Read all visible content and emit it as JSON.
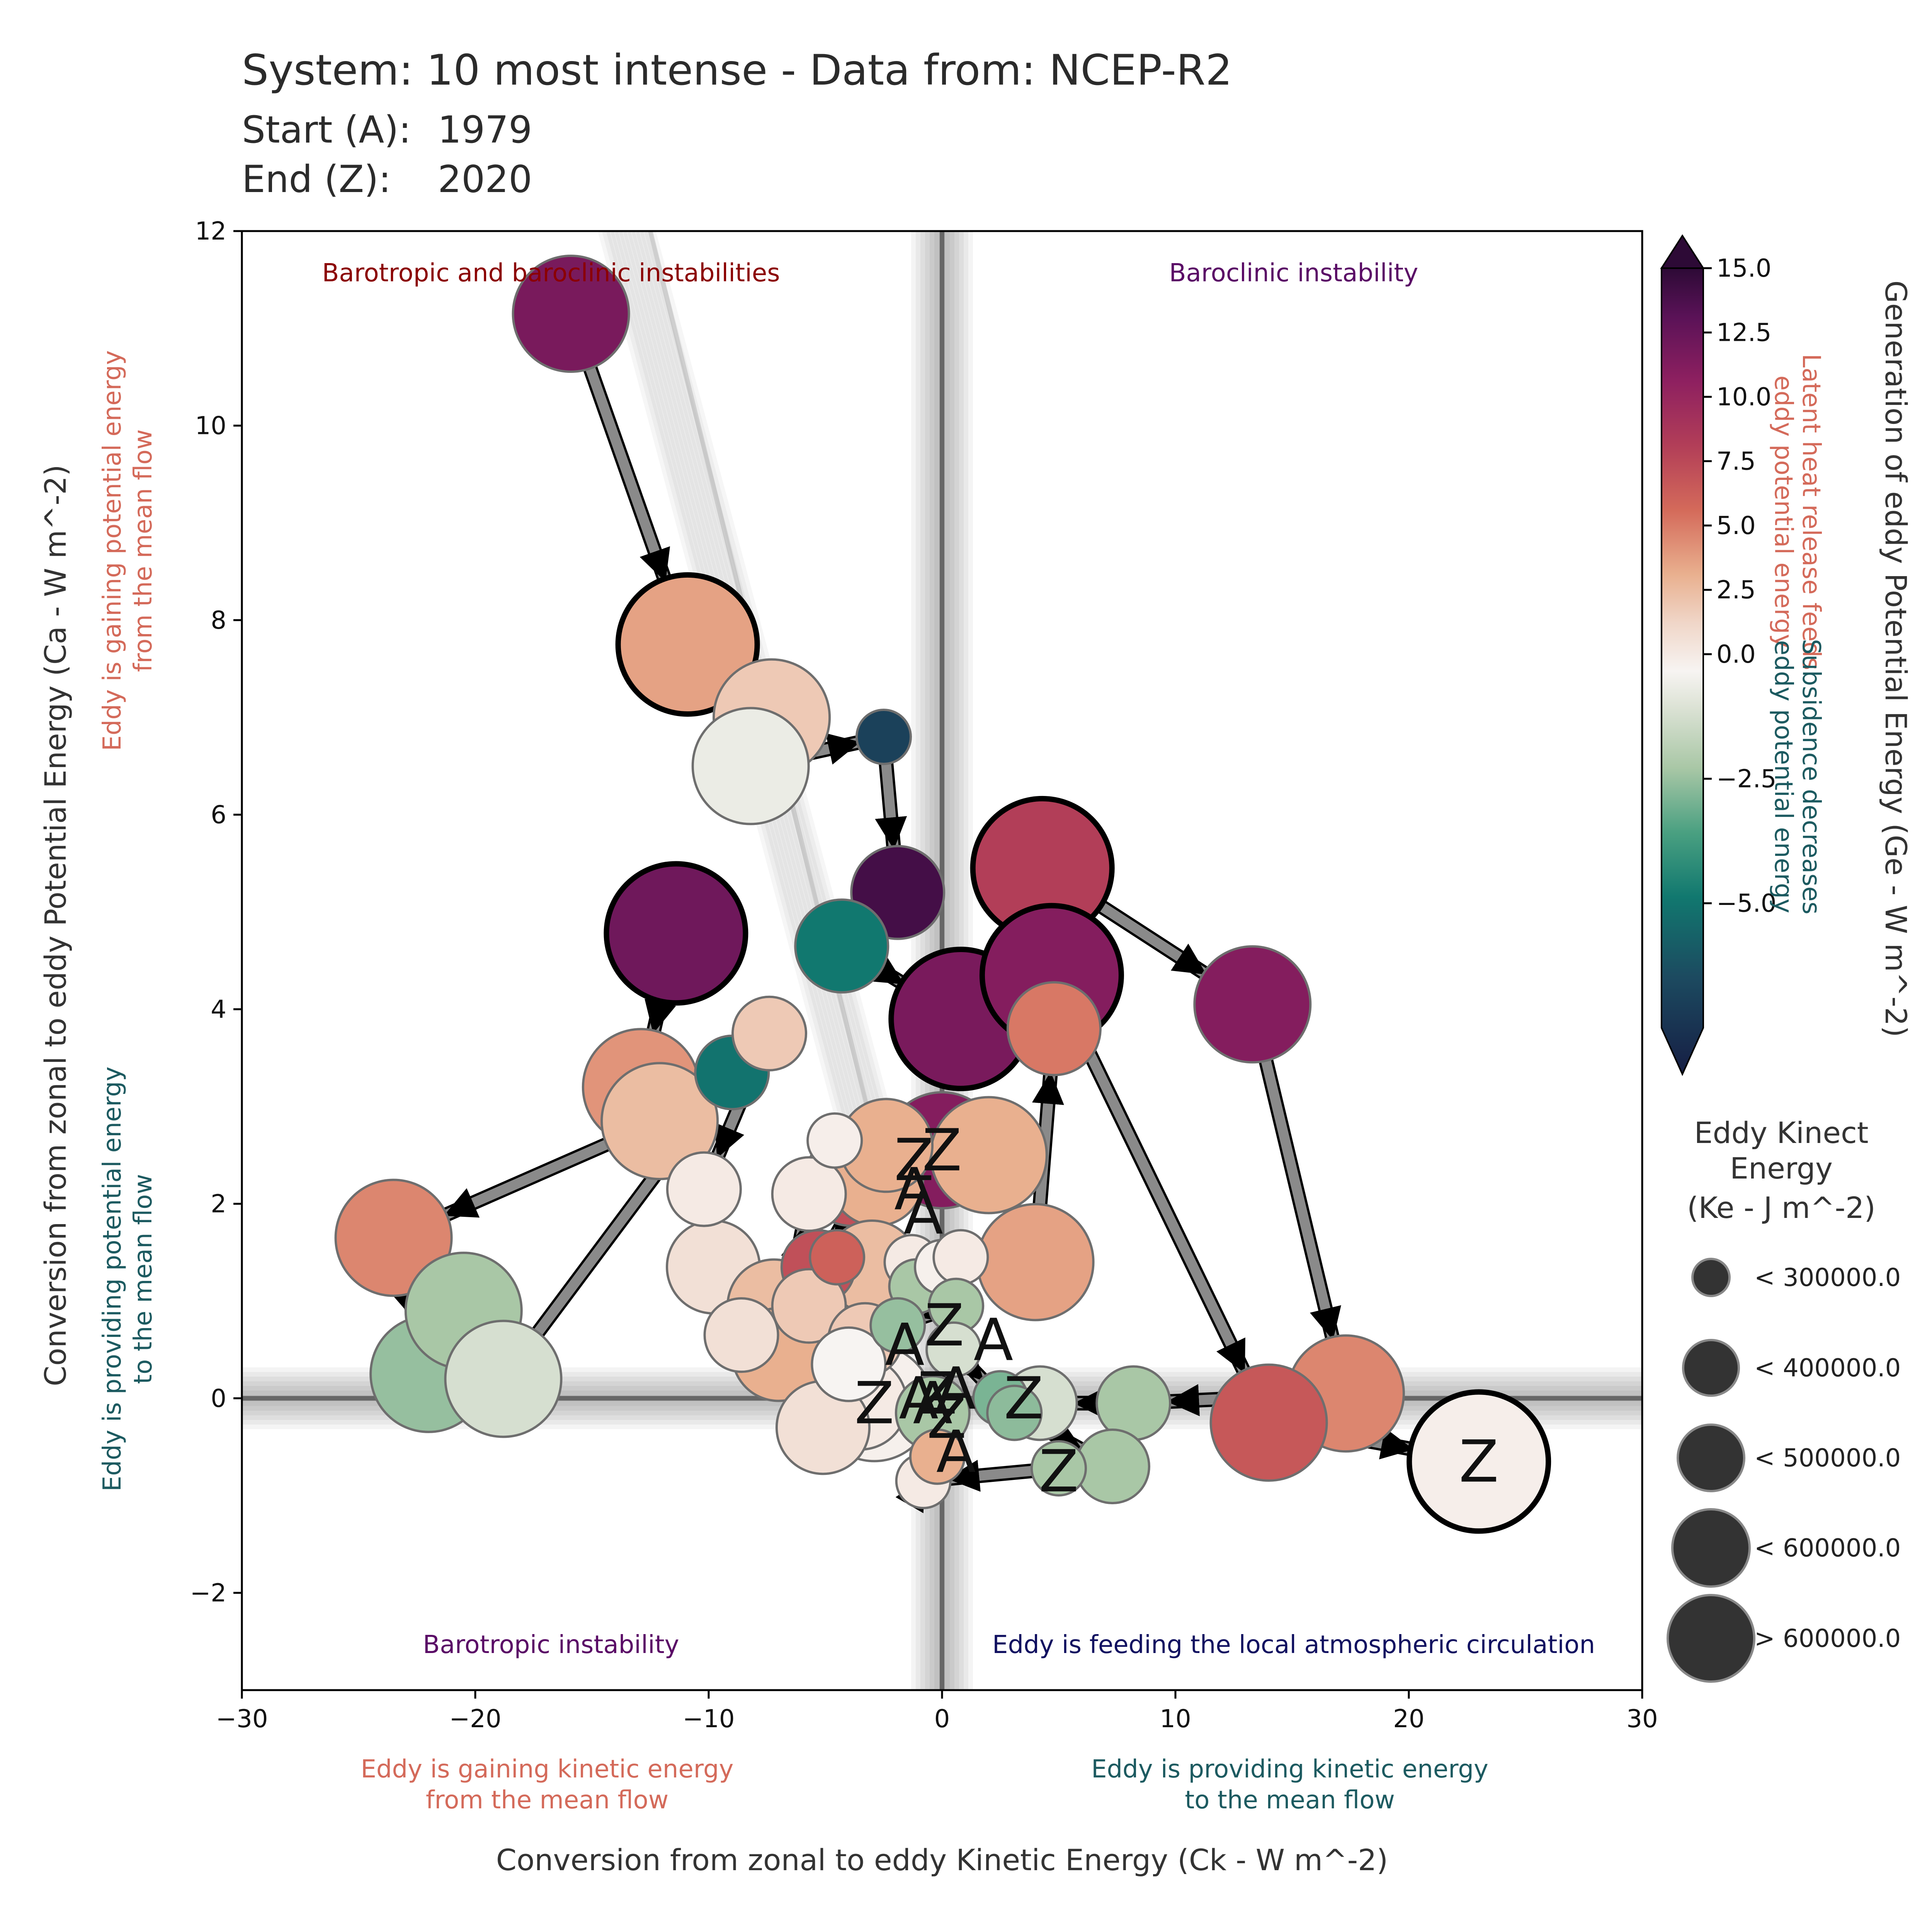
{
  "header": {
    "title": "System: 10 most intense - Data from: NCEP-R2",
    "start_label": "Start (A):",
    "start_value": "1979",
    "end_label": "End (Z):",
    "end_value": "2020"
  },
  "chart_data": {
    "type": "scatter",
    "xlabel": "Conversion from zonal to eddy Kinetic Energy (Ck -  W m^-2)",
    "ylabel": "Conversion from zonal to eddy Potential Energy (Ca -  W m^-2)",
    "xlim": [
      -30,
      30
    ],
    "ylim": [
      -3,
      12
    ],
    "x_ticks": [
      "−30",
      "−20",
      "−10",
      "0",
      "10",
      "20",
      "30"
    ],
    "x_tick_values": [
      -30,
      -20,
      -10,
      0,
      10,
      20,
      30
    ],
    "y_ticks": [
      "−2",
      "0",
      "2",
      "4",
      "6",
      "8",
      "10",
      "12"
    ],
    "y_tick_values": [
      -2,
      0,
      2,
      4,
      6,
      8,
      10,
      12
    ],
    "quadrant_labels": {
      "top_left": "Barotropic and baroclinic instabilities",
      "top_right": "Baroclinic instability",
      "bottom_left": "Barotropic instability",
      "bottom_right": "Eddy is feeding the local atmospheric circulation"
    },
    "x_annotations": {
      "left": [
        "Eddy is gaining kinetic energy",
        "from the mean flow"
      ],
      "right": [
        "Eddy is providing kinetic energy",
        "to the mean flow"
      ]
    },
    "y_annotations": {
      "top": [
        "Eddy is gaining potential energy",
        "from the mean flow"
      ],
      "bottom": [
        "Eddy is providing potential energy",
        "to the mean flow"
      ]
    },
    "colorbar": {
      "label": "Generation of eddy Potential Energy (Ge -  W m^-2)",
      "ticks": [
        "15.0",
        "12.5",
        "10.0",
        "7.5",
        "5.0",
        "2.5",
        "0.0",
        "−2.5",
        "−5.0"
      ],
      "tick_values": [
        15,
        12.5,
        10,
        7.5,
        5,
        2.5,
        0,
        -2.5,
        -5
      ],
      "range": [
        -7.5,
        15
      ],
      "annotation_positive": [
        "Latent heat release feeds",
        "eddy potential energy"
      ],
      "annotation_negative": [
        "Subsidence decreases",
        "eddy potential energy"
      ]
    },
    "size_legend": {
      "title": [
        "Eddy Kinect",
        "Energy",
        "(Ke -  J m^-2)"
      ],
      "entries": [
        "< 300000.0",
        "< 400000.0",
        "< 500000.0",
        "< 600000.0",
        "> 600000.0"
      ]
    },
    "colors": {
      "pos_high": "#2d0a36",
      "pos_mid": "#8e2060",
      "pos_low": "#d46a5a",
      "pale": "#e9bfa8",
      "zero": "#f7f4f2",
      "neg_low": "#cfd9c4",
      "neg_mid": "#4aa081",
      "neg_high": "#1c4a60",
      "arrow": "#8a8a8a"
    },
    "series": [
      {
        "points": [
          {
            "x": 0,
            "y": 2.55,
            "ge": 11,
            "s": 4,
            "mark": "Z"
          },
          {
            "x": 2.0,
            "y": 2.5,
            "ge": 3,
            "s": 4
          },
          {
            "x": 4.0,
            "y": 1.4,
            "ge": 3.5,
            "s": 4
          },
          {
            "x": 4.8,
            "y": 3.8,
            "ge": 5,
            "s": 3
          },
          {
            "x": 4.3,
            "y": 5.45,
            "ge": 8,
            "s": 5
          },
          {
            "x": 13.3,
            "y": 4.05,
            "ge": 11,
            "s": 4
          },
          {
            "x": 17.3,
            "y": 0.05,
            "ge": 4.5,
            "s": 4
          },
          {
            "x": 8.2,
            "y": -0.05,
            "ge": -1,
            "s": 2
          },
          {
            "x": 4.2,
            "y": -0.05,
            "ge": -0.5,
            "s": 2
          }
        ]
      },
      {
        "points": [
          {
            "x": -15.9,
            "y": 11.15,
            "ge": 11.5,
            "s": 4
          },
          {
            "x": -10.9,
            "y": 7.75,
            "ge": 3.5,
            "s": 5
          },
          {
            "x": -7.3,
            "y": 7.0,
            "ge": 2,
            "s": 4
          },
          {
            "x": -8.2,
            "y": 6.5,
            "ge": -0.2,
            "s": 4
          },
          {
            "x": -2.5,
            "y": 6.8,
            "ge": -5.5,
            "s": 1
          },
          {
            "x": -1.9,
            "y": 5.2,
            "ge": 14,
            "s": 3
          },
          {
            "x": -4.3,
            "y": 4.65,
            "ge": -3,
            "s": 3
          },
          {
            "x": 0.8,
            "y": 3.9,
            "ge": 11.5,
            "s": 5
          },
          {
            "x": 4.7,
            "y": 4.35,
            "ge": 11,
            "s": 5
          },
          {
            "x": 14.0,
            "y": -0.25,
            "ge": 6.5,
            "s": 4
          },
          {
            "x": 23.0,
            "y": -0.65,
            "ge": 0.3,
            "s": 5,
            "mark": "Z"
          }
        ]
      },
      {
        "points": [
          {
            "x": -11.4,
            "y": 4.78,
            "ge": 12,
            "s": 5
          },
          {
            "x": -12.9,
            "y": 3.2,
            "ge": 4,
            "s": 4
          },
          {
            "x": -12.1,
            "y": 2.85,
            "ge": 2.5,
            "s": 4
          },
          {
            "x": -23.5,
            "y": 1.65,
            "ge": 4.5,
            "s": 4
          },
          {
            "x": -22.0,
            "y": 0.25,
            "ge": -1.2,
            "s": 4
          },
          {
            "x": -20.5,
            "y": 0.9,
            "ge": -1,
            "s": 4
          },
          {
            "x": -18.8,
            "y": 0.2,
            "ge": -0.5,
            "s": 4
          },
          {
            "x": -9.0,
            "y": 3.35,
            "ge": -3.2,
            "s": 2
          },
          {
            "x": -7.4,
            "y": 3.75,
            "ge": 2,
            "s": 2
          },
          {
            "x": -10.2,
            "y": 2.15,
            "ge": 0.5,
            "s": 2
          },
          {
            "x": -9.8,
            "y": 1.35,
            "ge": 1,
            "s": 3
          },
          {
            "x": -8.6,
            "y": 0.65,
            "ge": 1,
            "s": 2
          },
          {
            "x": -7.2,
            "y": 0.95,
            "ge": 2.5,
            "s": 3
          },
          {
            "x": -7.0,
            "y": 0.45,
            "ge": 3,
            "s": 3
          },
          {
            "x": -5.7,
            "y": 2.1,
            "ge": 0.5,
            "s": 2
          },
          {
            "x": -4.6,
            "y": 2.65,
            "ge": 0.3,
            "s": 1
          },
          {
            "x": -3.9,
            "y": 2.25,
            "ge": 7,
            "s": 3
          },
          {
            "x": -2.8,
            "y": 2.25,
            "ge": 3,
            "s": 3
          },
          {
            "x": -2.4,
            "y": 2.6,
            "ge": 3,
            "s": 3
          },
          {
            "x": -5.3,
            "y": 1.35,
            "ge": 7,
            "s": 2
          },
          {
            "x": -4.5,
            "y": 1.45,
            "ge": 6,
            "s": 1
          },
          {
            "x": -3.0,
            "y": 1.35,
            "ge": 2.5,
            "s": 3
          },
          {
            "x": -5.7,
            "y": 0.95,
            "ge": 2,
            "s": 2
          },
          {
            "x": -1.3,
            "y": 1.4,
            "ge": 0.5,
            "s": 1
          },
          {
            "x": -1.1,
            "y": 1.15,
            "ge": -1,
            "s": 1
          },
          {
            "x": 0,
            "y": 1.35,
            "ge": 0.2,
            "s": 1
          },
          {
            "x": 0.8,
            "y": 1.45,
            "ge": 0.5,
            "s": 1
          },
          {
            "x": 0.6,
            "y": 0.95,
            "ge": -1,
            "s": 1
          },
          {
            "x": -1.9,
            "y": 0.75,
            "ge": -1.2,
            "s": 1
          },
          {
            "x": -3.3,
            "y": 0.6,
            "ge": 2,
            "s": 2
          },
          {
            "x": -4.0,
            "y": 0.35,
            "ge": 0,
            "s": 2
          },
          {
            "x": -3.5,
            "y": -0.05,
            "ge": 0.5,
            "s": 3
          },
          {
            "x": -5.1,
            "y": -0.3,
            "ge": 1,
            "s": 3
          },
          {
            "x": -2.9,
            "y": -0.05,
            "ge": 0.2,
            "s": 4,
            "mark": "Z"
          },
          {
            "x": -0.4,
            "y": -0.15,
            "ge": -1,
            "s": 2
          },
          {
            "x": 0.5,
            "y": 0.5,
            "ge": -0.5,
            "s": 1
          },
          {
            "x": 2.5,
            "y": 0.0,
            "ge": -1.5,
            "s": 1
          },
          {
            "x": 3.1,
            "y": -0.15,
            "ge": -1.3,
            "s": 1
          },
          {
            "x": 7.3,
            "y": -0.7,
            "ge": -1,
            "s": 2
          },
          {
            "x": 5.0,
            "y": -0.72,
            "ge": -1,
            "s": 1
          },
          {
            "x": -0.8,
            "y": -0.85,
            "ge": 0.5,
            "s": 1
          },
          {
            "x": -0.2,
            "y": -0.6,
            "ge": 3,
            "s": 1
          }
        ]
      }
    ],
    "start_marks": [
      {
        "x": -1.2,
        "y": 2.15,
        "text": "A"
      },
      {
        "x": -0.8,
        "y": 1.9,
        "text": "A"
      },
      {
        "x": -1.6,
        "y": 0.55,
        "text": "A"
      },
      {
        "x": 2.2,
        "y": 0.6,
        "text": "A"
      },
      {
        "x": -1.0,
        "y": 0.0,
        "text": "A"
      },
      {
        "x": -0.4,
        "y": -0.05,
        "text": "A"
      },
      {
        "x": 0.6,
        "y": 0.1,
        "text": "A"
      },
      {
        "x": 0.6,
        "y": -0.55,
        "text": "A"
      }
    ],
    "end_marks": [
      {
        "x": -1.2,
        "y": 2.45,
        "text": "Z"
      },
      {
        "x": 0.1,
        "y": 0.75,
        "text": "Z"
      },
      {
        "x": 3.5,
        "y": 0.0,
        "text": "Z"
      },
      {
        "x": -0.2,
        "y": 0.05,
        "text": "Z"
      },
      {
        "x": 0.2,
        "y": -0.2,
        "text": "Z"
      },
      {
        "x": 5.0,
        "y": -0.75,
        "text": "Z"
      }
    ]
  }
}
